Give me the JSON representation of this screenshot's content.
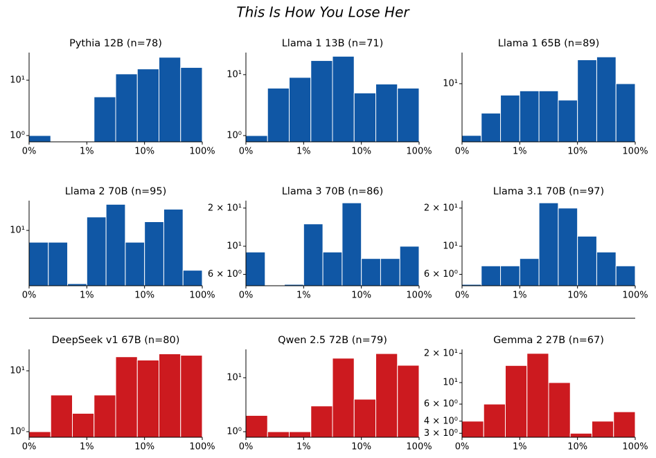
{
  "title": "This Is How You Lose Her",
  "chart_data": [
    {
      "type": "histogram",
      "title": "Pythia 12B (n=78)",
      "color": "#1057a5",
      "xscale": "log",
      "yscale": "log",
      "bins": [
        0.1,
        0.2371,
        0.5623,
        1.334,
        3.162,
        7.499,
        17.78,
        42.17,
        100
      ],
      "values": [
        1,
        0,
        0,
        5,
        13,
        16,
        26,
        17
      ],
      "xlim": [
        0.1,
        100
      ],
      "xticks": [
        {
          "value": 0.1,
          "label": "0%"
        },
        {
          "value": 1,
          "label": "1%"
        },
        {
          "value": 10,
          "label": "10%"
        },
        {
          "value": 100,
          "label": "100%"
        }
      ],
      "ylim": [
        0.77,
        31.6
      ],
      "yticks": [
        {
          "value": 1,
          "label": "10⁰"
        },
        {
          "value": 10,
          "label": "10¹"
        }
      ]
    },
    {
      "type": "histogram",
      "title": "Llama 1 13B (n=71)",
      "color": "#1057a5",
      "xscale": "log",
      "yscale": "log",
      "bins": [
        0.1,
        0.2371,
        0.5623,
        1.334,
        3.162,
        7.499,
        17.78,
        42.17,
        100
      ],
      "values": [
        1,
        6,
        9,
        17,
        20,
        5,
        7,
        6
      ],
      "xlim": [
        0.1,
        100
      ],
      "xticks": [
        {
          "value": 0.1,
          "label": "0%"
        },
        {
          "value": 1,
          "label": "1%"
        },
        {
          "value": 10,
          "label": "10%"
        },
        {
          "value": 100,
          "label": "100%"
        }
      ],
      "ylim": [
        0.79,
        23
      ],
      "yticks": [
        {
          "value": 1,
          "label": "10⁰"
        },
        {
          "value": 10,
          "label": "10¹"
        }
      ]
    },
    {
      "type": "histogram",
      "title": "Llama 1 65B (n=89)",
      "color": "#1057a5",
      "xscale": "log",
      "yscale": "log",
      "bins": [
        0.1,
        0.2154,
        0.4642,
        1,
        2.154,
        4.642,
        10,
        21.54,
        46.42,
        100
      ],
      "values": [
        2,
        4,
        7,
        8,
        8,
        6,
        21,
        23,
        10
      ],
      "xlim": [
        0.1,
        100
      ],
      "xticks": [
        {
          "value": 0.1,
          "label": "0%"
        },
        {
          "value": 1,
          "label": "1%"
        },
        {
          "value": 10,
          "label": "10%"
        },
        {
          "value": 100,
          "label": "100%"
        }
      ],
      "ylim": [
        1.64,
        26.3
      ],
      "yticks": [
        {
          "value": 10,
          "label": "10¹"
        }
      ]
    },
    {
      "type": "histogram",
      "title": "Llama 2 70B (n=95)",
      "color": "#1057a5",
      "xscale": "log",
      "yscale": "log",
      "bins": [
        0.1,
        0.2154,
        0.4642,
        1,
        2.154,
        4.642,
        10,
        21.54,
        46.42,
        100
      ],
      "values": [
        7,
        7,
        2,
        15,
        22,
        7,
        13,
        19,
        3
      ],
      "xlim": [
        0.1,
        100
      ],
      "xticks": [
        {
          "value": 0.1,
          "label": "0%"
        },
        {
          "value": 1,
          "label": "1%"
        },
        {
          "value": 10,
          "label": "10%"
        },
        {
          "value": 100,
          "label": "100%"
        }
      ],
      "ylim": [
        1.88,
        24.6
      ],
      "yticks": [
        {
          "value": 10,
          "label": "10¹"
        }
      ]
    },
    {
      "type": "histogram",
      "title": "Llama 3 70B (n=86)",
      "color": "#1057a5",
      "xscale": "log",
      "yscale": "log",
      "bins": [
        0.1,
        0.2154,
        0.4642,
        1,
        2.154,
        4.642,
        10,
        21.54,
        46.42,
        100
      ],
      "values": [
        9,
        0,
        5,
        15,
        9,
        22,
        8,
        8,
        10
      ],
      "xlim": [
        0.1,
        100
      ],
      "xticks": [
        {
          "value": 0.1,
          "label": "0%"
        },
        {
          "value": 1,
          "label": "1%"
        },
        {
          "value": 10,
          "label": "10%"
        },
        {
          "value": 100,
          "label": "100%"
        }
      ],
      "ylim": [
        4.88,
        22.9
      ],
      "yticks": [
        {
          "value": 6,
          "label": "6 × 10⁰"
        },
        {
          "value": 10,
          "label": "10¹"
        },
        {
          "value": 20,
          "label": "2 × 10¹"
        }
      ]
    },
    {
      "type": "histogram",
      "title": "Llama 3.1 70B (n=97)",
      "color": "#1057a5",
      "xscale": "log",
      "yscale": "log",
      "bins": [
        0.1,
        0.2154,
        0.4642,
        1,
        2.154,
        4.642,
        10,
        21.54,
        46.42,
        100
      ],
      "values": [
        5,
        7,
        7,
        8,
        22,
        20,
        12,
        9,
        7
      ],
      "xlim": [
        0.1,
        100
      ],
      "xticks": [
        {
          "value": 0.1,
          "label": "0%"
        },
        {
          "value": 1,
          "label": "1%"
        },
        {
          "value": 10,
          "label": "10%"
        },
        {
          "value": 100,
          "label": "100%"
        }
      ],
      "ylim": [
        4.88,
        22.9
      ],
      "yticks": [
        {
          "value": 6,
          "label": "6 × 10⁰"
        },
        {
          "value": 10,
          "label": "10¹"
        },
        {
          "value": 20,
          "label": "2 × 10¹"
        }
      ]
    },
    {
      "type": "histogram",
      "title": "DeepSeek v1 67B (n=80)",
      "color": "#cc1a1f",
      "xscale": "log",
      "yscale": "log",
      "bins": [
        0.1,
        0.2371,
        0.5623,
        1.334,
        3.162,
        7.499,
        17.78,
        42.17,
        100
      ],
      "values": [
        1,
        4,
        2,
        4,
        17,
        15,
        19,
        18
      ],
      "xlim": [
        0.1,
        100
      ],
      "xticks": [
        {
          "value": 0.1,
          "label": "0%"
        },
        {
          "value": 1,
          "label": "1%"
        },
        {
          "value": 10,
          "label": "10%"
        },
        {
          "value": 100,
          "label": "100%"
        }
      ],
      "ylim": [
        0.81,
        22.5
      ],
      "yticks": [
        {
          "value": 1,
          "label": "10⁰"
        },
        {
          "value": 10,
          "label": "10¹"
        }
      ]
    },
    {
      "type": "histogram",
      "title": "Qwen 2.5 72B (n=79)",
      "color": "#cc1a1f",
      "xscale": "log",
      "yscale": "log",
      "bins": [
        0.1,
        0.2371,
        0.5623,
        1.334,
        3.162,
        7.499,
        17.78,
        42.17,
        100
      ],
      "values": [
        2,
        1,
        1,
        3,
        23,
        4,
        28,
        17
      ],
      "xlim": [
        0.1,
        100
      ],
      "xticks": [
        {
          "value": 0.1,
          "label": "0%"
        },
        {
          "value": 1,
          "label": "1%"
        },
        {
          "value": 10,
          "label": "10%"
        },
        {
          "value": 100,
          "label": "100%"
        }
      ],
      "ylim": [
        0.79,
        33.5
      ],
      "yticks": [
        {
          "value": 1,
          "label": "10⁰"
        },
        {
          "value": 10,
          "label": "10¹"
        }
      ]
    },
    {
      "type": "histogram",
      "title": "Gemma 2 27B (n=67)",
      "color": "#cc1a1f",
      "xscale": "log",
      "yscale": "log",
      "bins": [
        0.1,
        0.2371,
        0.5623,
        1.334,
        3.162,
        7.499,
        17.78,
        42.17,
        100
      ],
      "values": [
        4,
        6,
        15,
        20,
        10,
        3,
        4,
        5
      ],
      "xlim": [
        0.1,
        100
      ],
      "xticks": [
        {
          "value": 0.1,
          "label": "0%"
        },
        {
          "value": 1,
          "label": "1%"
        },
        {
          "value": 10,
          "label": "10%"
        },
        {
          "value": 100,
          "label": "100%"
        }
      ],
      "ylim": [
        2.73,
        22
      ],
      "yticks": [
        {
          "value": 3,
          "label": "3 × 10⁰"
        },
        {
          "value": 4,
          "label": "4 × 10⁰"
        },
        {
          "value": 6,
          "label": "6 × 10⁰"
        },
        {
          "value": 10,
          "label": "10¹"
        },
        {
          "value": 20,
          "label": "2 × 10¹"
        }
      ]
    }
  ]
}
